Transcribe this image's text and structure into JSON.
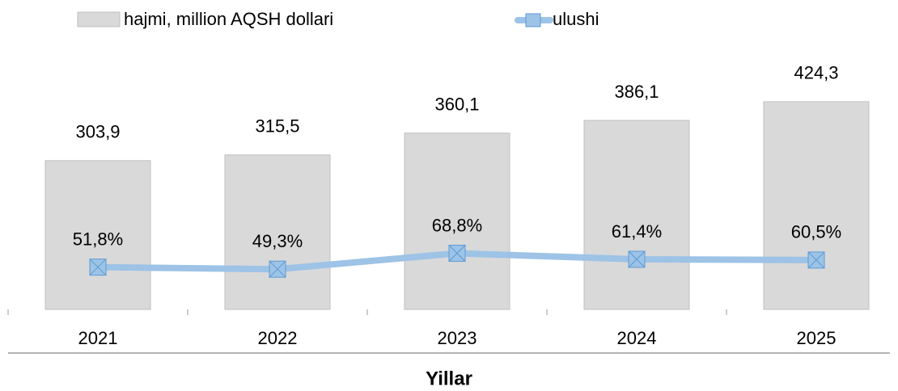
{
  "chart_data": {
    "type": "bar",
    "categories": [
      "2021",
      "2022",
      "2023",
      "2024",
      "2025"
    ],
    "xlabel": "Yillar",
    "series": [
      {
        "name": "hajmi, million AQSH dollari",
        "type": "bar",
        "color": "#d9d9d9",
        "values": [
          303.9,
          315.5,
          360.1,
          386.1,
          424.3
        ],
        "value_labels": [
          "303,9",
          "315,5",
          "360,1",
          "386,1",
          "424,3"
        ]
      },
      {
        "name": "ulushi",
        "type": "line",
        "axis": "y2",
        "color": "#9dc3e6",
        "values": [
          51.8,
          49.3,
          68.8,
          61.4,
          60.5
        ],
        "value_labels": [
          "51,8%",
          "49,3%",
          "68,8%",
          "61,4%",
          "60,5%"
        ]
      }
    ],
    "ylim": [
      0,
      500
    ],
    "y2lim": [
      0,
      300
    ],
    "legend": "top"
  }
}
